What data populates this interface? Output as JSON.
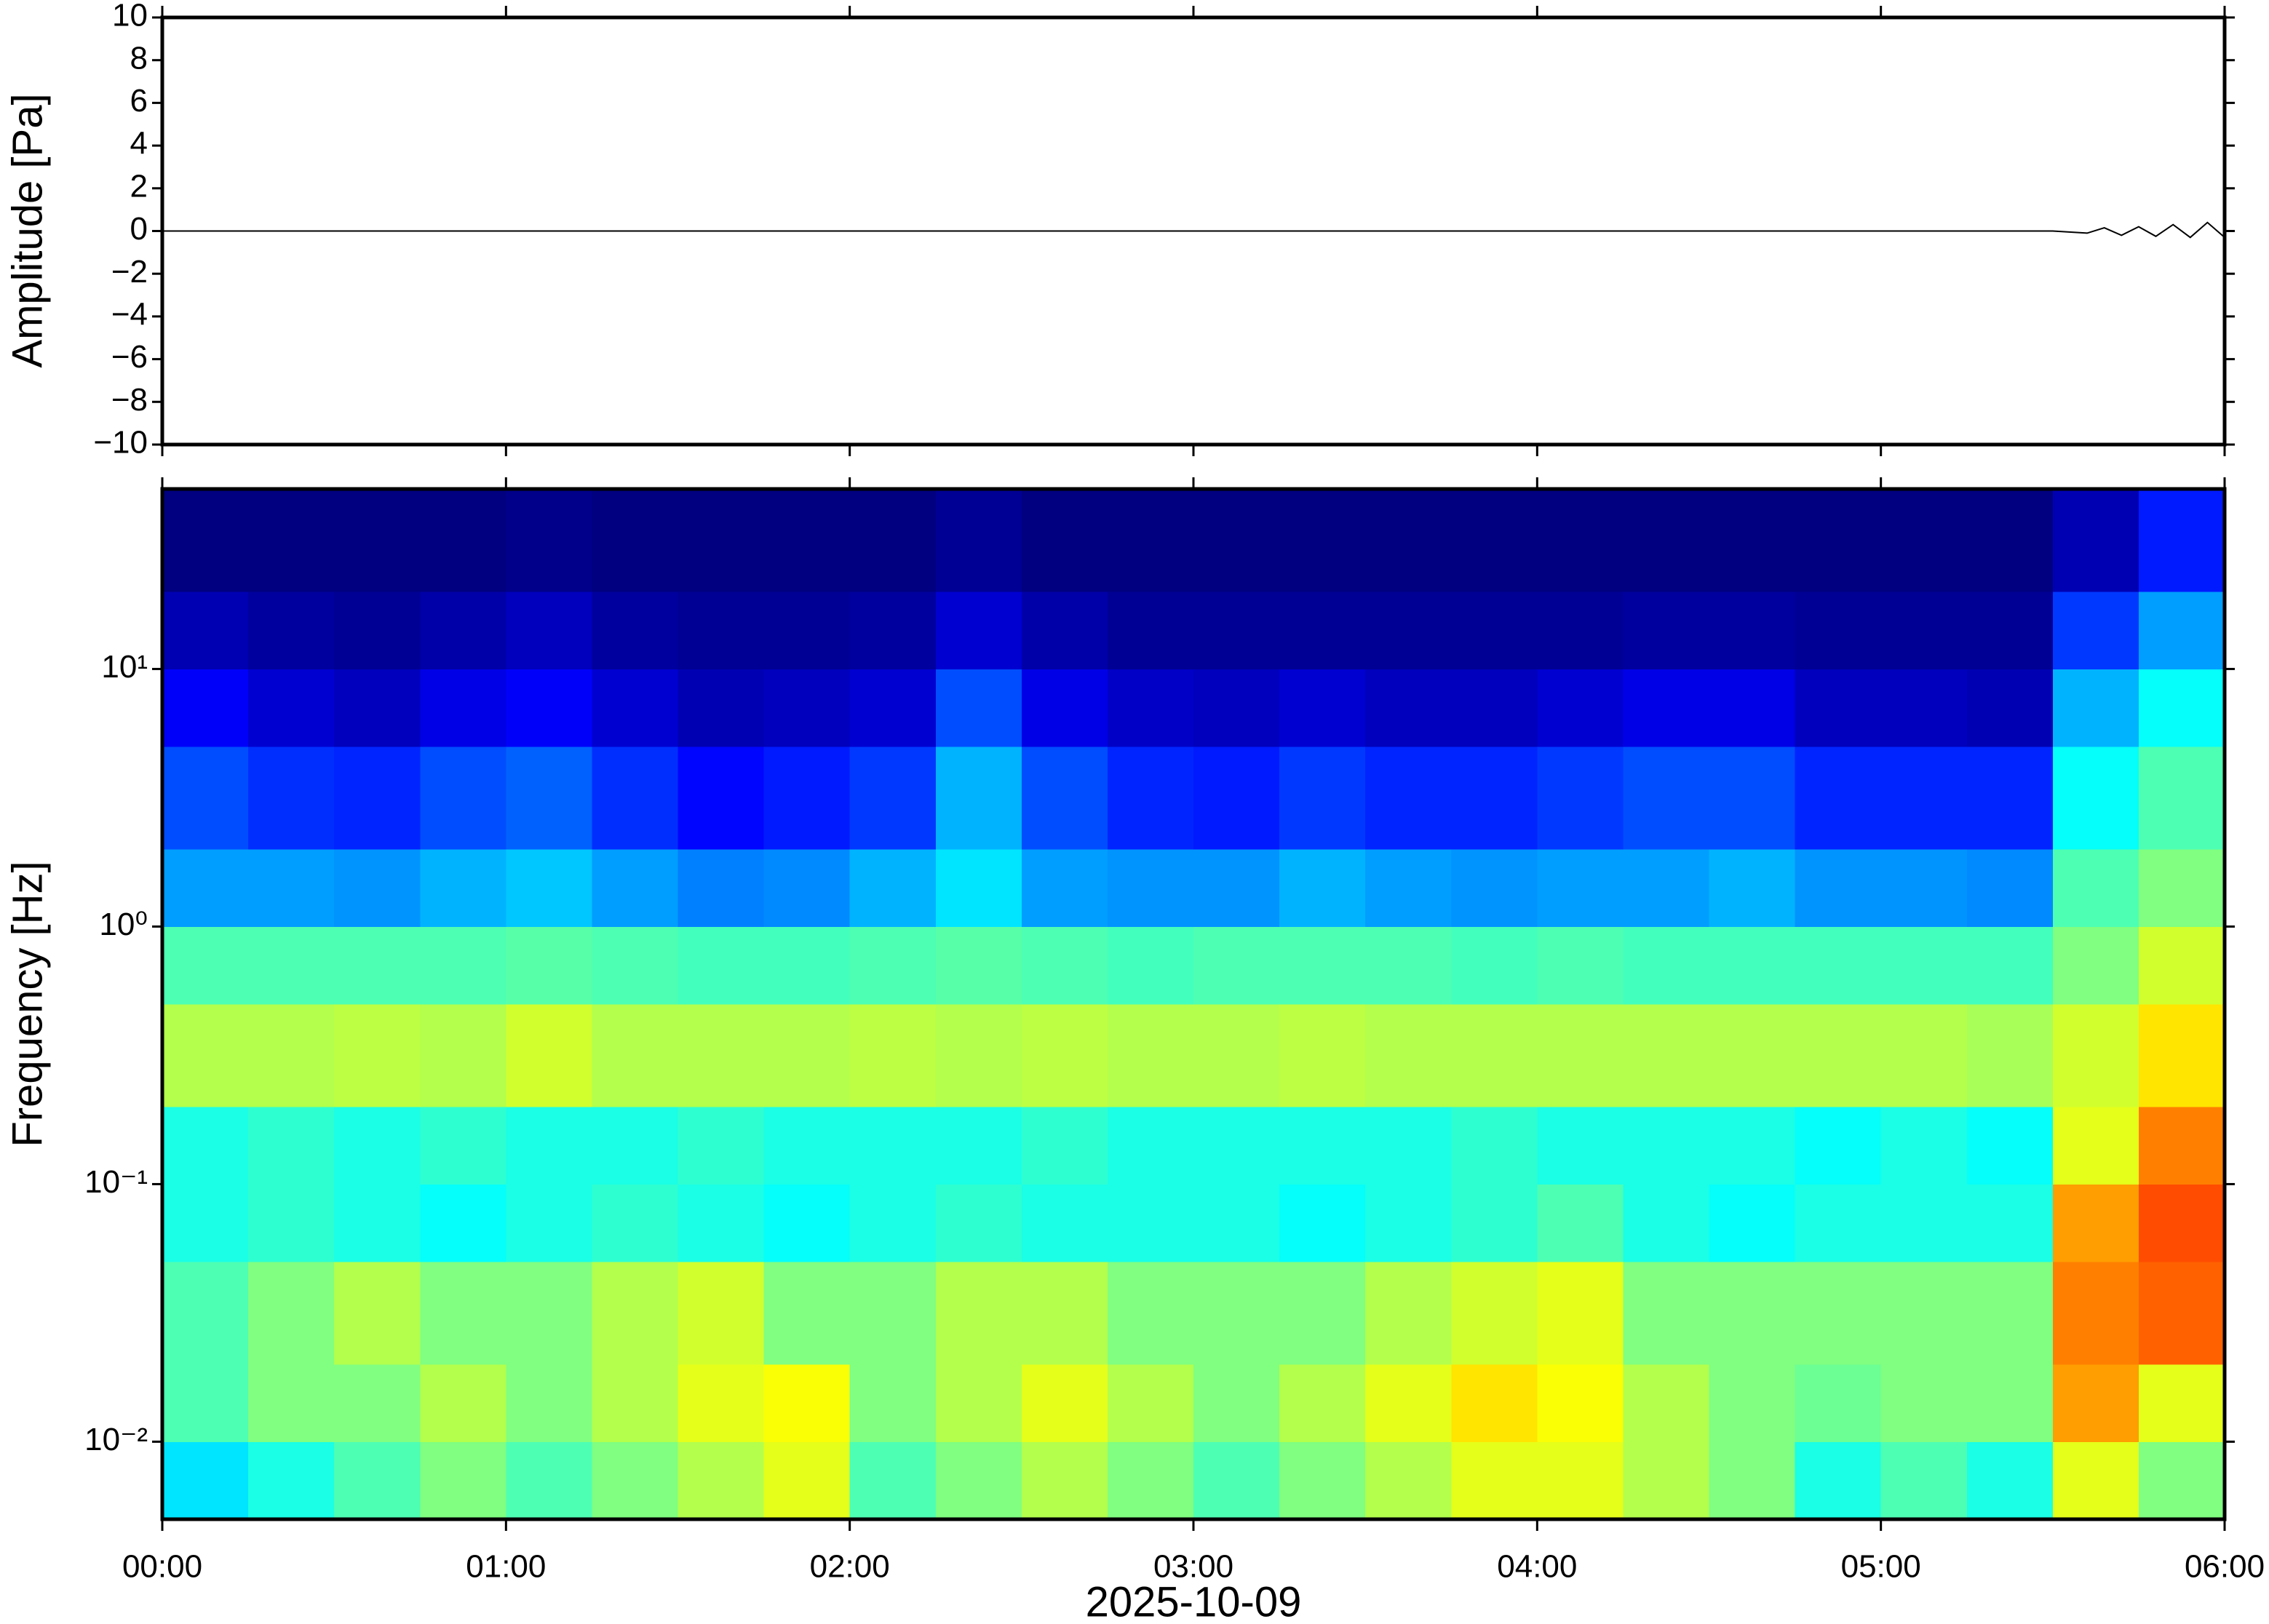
{
  "chart_data": [
    {
      "type": "line",
      "ylabel": "Amplitude [Pa]",
      "color": "#000000",
      "xlim": [
        0,
        6
      ],
      "ylim": [
        -10,
        10
      ],
      "yticks": [
        {
          "value": -10,
          "label": "−10"
        },
        {
          "value": -8,
          "label": "−8"
        },
        {
          "value": -6,
          "label": "−6"
        },
        {
          "value": -4,
          "label": "−4"
        },
        {
          "value": -2,
          "label": "−2"
        },
        0,
        2,
        4,
        6,
        8,
        10
      ],
      "x": [
        0,
        1,
        2,
        3,
        4,
        5,
        5.5,
        5.6,
        5.65,
        5.7,
        5.75,
        5.8,
        5.85,
        5.9,
        5.95,
        6
      ],
      "values": [
        0,
        0,
        0,
        0,
        0,
        0,
        0,
        -0.1,
        0.15,
        -0.2,
        0.2,
        -0.25,
        0.3,
        -0.3,
        0.4,
        -0.3
      ]
    },
    {
      "type": "heatmap",
      "ylabel": "Frequency [Hz]",
      "xlabel": "2025-10-09",
      "log_y": true,
      "xlim": [
        0,
        6
      ],
      "ylim": [
        0.005,
        50
      ],
      "xticks": [
        {
          "value": 0,
          "label": "00:00"
        },
        {
          "value": 1,
          "label": "01:00"
        },
        {
          "value": 2,
          "label": "02:00"
        },
        {
          "value": 3,
          "label": "03:00"
        },
        {
          "value": 4,
          "label": "04:00"
        },
        {
          "value": 5,
          "label": "05:00"
        },
        {
          "value": 6,
          "label": "06:00"
        }
      ],
      "yticks": [
        {
          "value": 0.01,
          "label": "10⁻²"
        },
        {
          "value": 0.1,
          "label": "10⁻¹"
        },
        {
          "value": 1,
          "label": "10⁰"
        },
        {
          "value": 10,
          "label": "10¹"
        }
      ],
      "x_edges": [
        0,
        0.25,
        0.5,
        0.75,
        1,
        1.25,
        1.5,
        1.75,
        2,
        2.25,
        2.5,
        2.75,
        3,
        3.25,
        3.5,
        3.75,
        4,
        4.25,
        4.5,
        4.75,
        5,
        5.25,
        5.5,
        5.75,
        6
      ],
      "y_edges": [
        0.005,
        0.01,
        0.02,
        0.05,
        0.1,
        0.2,
        0.5,
        1,
        2,
        5,
        10,
        20,
        50
      ],
      "z": [
        [
          0.35,
          0.4,
          0.45,
          0.5,
          0.45,
          0.5,
          0.55,
          0.6,
          0.45,
          0.5,
          0.55,
          0.5,
          0.45,
          0.5,
          0.55,
          0.6,
          0.6,
          0.55,
          0.5,
          0.4,
          0.45,
          0.4,
          0.6,
          0.5
        ],
        [
          0.45,
          0.5,
          0.5,
          0.55,
          0.5,
          0.55,
          0.6,
          0.62,
          0.5,
          0.55,
          0.6,
          0.55,
          0.5,
          0.55,
          0.6,
          0.65,
          0.62,
          0.55,
          0.5,
          0.48,
          0.5,
          0.5,
          0.72,
          0.6
        ],
        [
          0.45,
          0.5,
          0.55,
          0.5,
          0.5,
          0.55,
          0.58,
          0.5,
          0.5,
          0.55,
          0.55,
          0.5,
          0.5,
          0.5,
          0.55,
          0.58,
          0.6,
          0.5,
          0.5,
          0.5,
          0.5,
          0.5,
          0.75,
          0.78
        ],
        [
          0.4,
          0.42,
          0.4,
          0.38,
          0.4,
          0.42,
          0.4,
          0.38,
          0.4,
          0.42,
          0.4,
          0.4,
          0.4,
          0.38,
          0.4,
          0.42,
          0.45,
          0.4,
          0.38,
          0.4,
          0.4,
          0.4,
          0.72,
          0.8
        ],
        [
          0.4,
          0.42,
          0.4,
          0.42,
          0.4,
          0.4,
          0.42,
          0.4,
          0.4,
          0.4,
          0.42,
          0.4,
          0.4,
          0.4,
          0.4,
          0.42,
          0.4,
          0.4,
          0.4,
          0.38,
          0.4,
          0.38,
          0.6,
          0.75
        ],
        [
          0.55,
          0.55,
          0.56,
          0.55,
          0.58,
          0.55,
          0.55,
          0.55,
          0.56,
          0.55,
          0.56,
          0.55,
          0.55,
          0.56,
          0.55,
          0.55,
          0.55,
          0.55,
          0.55,
          0.55,
          0.55,
          0.54,
          0.58,
          0.65
        ],
        [
          0.45,
          0.45,
          0.45,
          0.45,
          0.46,
          0.45,
          0.44,
          0.44,
          0.45,
          0.46,
          0.45,
          0.44,
          0.45,
          0.45,
          0.45,
          0.44,
          0.45,
          0.44,
          0.44,
          0.44,
          0.44,
          0.44,
          0.5,
          0.58
        ],
        [
          0.28,
          0.28,
          0.27,
          0.3,
          0.32,
          0.28,
          0.25,
          0.26,
          0.3,
          0.35,
          0.28,
          0.27,
          0.27,
          0.3,
          0.28,
          0.27,
          0.28,
          0.28,
          0.3,
          0.27,
          0.27,
          0.26,
          0.45,
          0.5
        ],
        [
          0.2,
          0.17,
          0.16,
          0.2,
          0.22,
          0.17,
          0.13,
          0.15,
          0.18,
          0.3,
          0.2,
          0.16,
          0.15,
          0.18,
          0.16,
          0.16,
          0.18,
          0.2,
          0.2,
          0.16,
          0.16,
          0.16,
          0.38,
          0.45
        ],
        [
          0.12,
          0.08,
          0.06,
          0.1,
          0.12,
          0.08,
          0.05,
          0.06,
          0.08,
          0.2,
          0.1,
          0.07,
          0.06,
          0.08,
          0.06,
          0.06,
          0.08,
          0.1,
          0.1,
          0.06,
          0.06,
          0.05,
          0.3,
          0.38
        ],
        [
          0.05,
          0.03,
          0.02,
          0.04,
          0.06,
          0.03,
          0.02,
          0.02,
          0.03,
          0.08,
          0.04,
          0.02,
          0.02,
          0.02,
          0.02,
          0.02,
          0.02,
          0.03,
          0.03,
          0.02,
          0.02,
          0.02,
          0.18,
          0.28
        ],
        [
          0,
          0,
          0,
          0,
          0.01,
          0,
          0,
          0,
          0,
          0.02,
          0,
          0,
          0,
          0,
          0,
          0,
          0,
          0,
          0,
          0,
          0,
          0,
          0.05,
          0.15
        ]
      ]
    }
  ]
}
